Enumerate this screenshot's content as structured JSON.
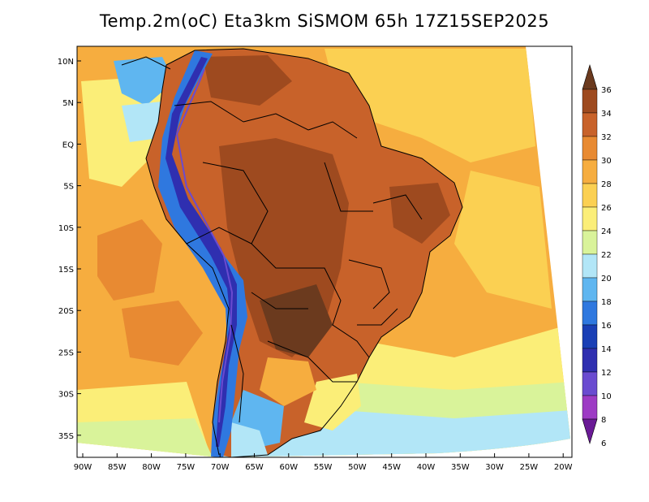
{
  "title": "Temp.2m(oC) Eta3km SiSMOM 65h 17Z15SEP2025",
  "map": {
    "lat_labels": [
      "10N",
      "5N",
      "EQ",
      "5S",
      "10S",
      "15S",
      "20S",
      "25S",
      "30S",
      "35S"
    ],
    "lon_labels": [
      "90W",
      "85W",
      "80W",
      "75W",
      "70W",
      "65W",
      "60W",
      "55W",
      "50W",
      "45W",
      "40W",
      "35W",
      "30W",
      "25W",
      "20W"
    ]
  },
  "colorbar": {
    "labels": [
      "36",
      "34",
      "32",
      "30",
      "28",
      "26",
      "24",
      "22",
      "20",
      "18",
      "16",
      "14",
      "12",
      "10",
      "8",
      "6"
    ],
    "colors": [
      "#6b3a1e",
      "#9e4a1f",
      "#c8622a",
      "#e88a32",
      "#f6ad3f",
      "#fbd052",
      "#fbee78",
      "#d9f39a",
      "#b2e6f7",
      "#5fb6f0",
      "#2f78df",
      "#1a3fb5",
      "#2f2fb0",
      "#6a4bd0",
      "#9d3bc4",
      "#6a1a96"
    ]
  }
}
